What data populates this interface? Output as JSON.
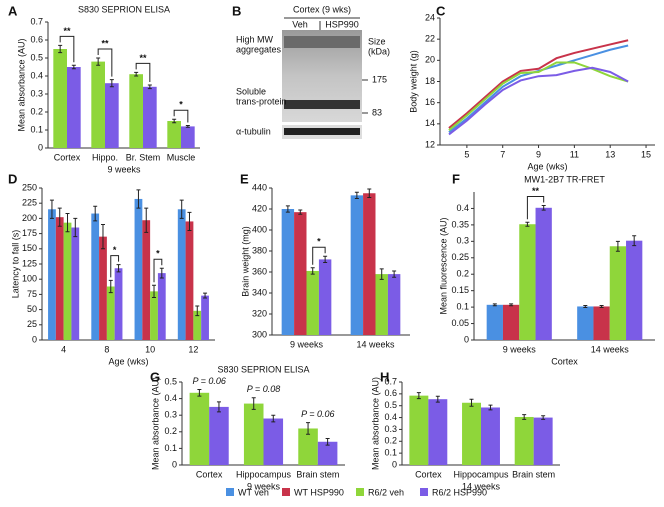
{
  "chart_data": [
    {
      "panel": "A",
      "type": "bar",
      "title": "S830 SEPRION ELISA",
      "ylabel": "Mean absorbance (AU)",
      "xlabel": "9 weeks",
      "categories": [
        "Cortex",
        "Hippo.",
        "Br. Stem",
        "Muscle"
      ],
      "series": [
        {
          "name": "R6/2 veh",
          "color": "#8fd63a",
          "values": [
            0.55,
            0.48,
            0.41,
            0.15
          ],
          "errors": [
            0.02,
            0.02,
            0.01,
            0.01
          ]
        },
        {
          "name": "R6/2 HSP990",
          "color": "#7b5ce6",
          "values": [
            0.45,
            0.36,
            0.34,
            0.12
          ],
          "errors": [
            0.01,
            0.02,
            0.01,
            0.005
          ]
        }
      ],
      "ylim": [
        0,
        0.7
      ],
      "yticks": [
        0,
        0.1,
        0.2,
        0.3,
        0.4,
        0.5,
        0.6,
        0.7
      ],
      "annotations": [
        "**",
        "**",
        "**",
        "*"
      ]
    },
    {
      "panel": "C",
      "type": "line",
      "ylabel": "Body weight (g)",
      "xlabel": "Age (wks)",
      "x": [
        4,
        5,
        6,
        7,
        8,
        9,
        10,
        11,
        12,
        13,
        14
      ],
      "series": [
        {
          "name": "WT veh",
          "color": "#4a90e2",
          "values": [
            13.2,
            14.5,
            16,
            17.5,
            18.5,
            19,
            19.5,
            20,
            20.5,
            21,
            21.4
          ]
        },
        {
          "name": "WT HSP990",
          "color": "#c8334a",
          "values": [
            13.6,
            15,
            16.5,
            18,
            19,
            19.2,
            20.2,
            20.7,
            21.1,
            21.5,
            21.9
          ]
        },
        {
          "name": "R6/2 veh",
          "color": "#8fd63a",
          "values": [
            13.4,
            14.8,
            16.3,
            17.8,
            18.8,
            18.9,
            19.8,
            19.8,
            19.2,
            18.5,
            18
          ]
        },
        {
          "name": "R6/2 HSP990",
          "color": "#7b5ce6",
          "values": [
            13,
            14.3,
            15.8,
            17.2,
            18.1,
            18.5,
            18.6,
            19,
            19.3,
            18.9,
            18
          ]
        }
      ],
      "xlim": [
        3.5,
        15.5
      ],
      "xticks": [
        5,
        7,
        9,
        11,
        13,
        15
      ],
      "ylim": [
        12,
        24
      ],
      "yticks": [
        12,
        14,
        16,
        18,
        20,
        22,
        24
      ]
    },
    {
      "panel": "D",
      "type": "bar",
      "ylabel": "Latency to fall (s)",
      "xlabel": "Age (wks)",
      "categories": [
        "4",
        "8",
        "10",
        "12"
      ],
      "series": [
        {
          "name": "WT veh",
          "color": "#4a90e2",
          "values": [
            215,
            208,
            232,
            215
          ],
          "errors": [
            15,
            12,
            15,
            15
          ]
        },
        {
          "name": "WT HSP990",
          "color": "#c8334a",
          "values": [
            202,
            170,
            197,
            195
          ],
          "errors": [
            15,
            20,
            20,
            15
          ]
        },
        {
          "name": "R6/2 veh",
          "color": "#8fd63a",
          "values": [
            193,
            88,
            80,
            48
          ],
          "errors": [
            15,
            10,
            10,
            8
          ]
        },
        {
          "name": "R6/2 HSP990",
          "color": "#7b5ce6",
          "values": [
            185,
            118,
            110,
            73
          ],
          "errors": [
            15,
            6,
            8,
            4
          ]
        }
      ],
      "ylim": [
        0,
        250
      ],
      "yticks": [
        0,
        25,
        50,
        75,
        100,
        125,
        150,
        175,
        200,
        225,
        250
      ],
      "annotations": [
        "*",
        "*"
      ]
    },
    {
      "panel": "E",
      "type": "bar",
      "ylabel": "Brain weight (mg)",
      "categories": [
        "9 weeks",
        "14 weeks"
      ],
      "series": [
        {
          "name": "WT veh",
          "color": "#4a90e2",
          "values": [
            420,
            433
          ],
          "errors": [
            3,
            3
          ]
        },
        {
          "name": "WT HSP990",
          "color": "#c8334a",
          "values": [
            417,
            435
          ],
          "errors": [
            2,
            4
          ]
        },
        {
          "name": "R6/2 veh",
          "color": "#8fd63a",
          "values": [
            361,
            358
          ],
          "errors": [
            3,
            5
          ]
        },
        {
          "name": "R6/2 HSP990",
          "color": "#7b5ce6",
          "values": [
            372,
            358
          ],
          "errors": [
            3,
            3
          ]
        }
      ],
      "ylim": [
        300,
        440
      ],
      "yticks": [
        300,
        320,
        340,
        360,
        380,
        400,
        420,
        440
      ],
      "annotations": [
        "*"
      ]
    },
    {
      "panel": "F",
      "type": "bar",
      "title": "MW1-2B7 TR-FRET",
      "ylabel": "Mean fluorescence (AU)",
      "xlabel": "Cortex",
      "categories": [
        "9 weeks",
        "14 weeks"
      ],
      "series": [
        {
          "name": "WT veh",
          "color": "#4a90e2",
          "values": [
            0.107,
            0.102
          ],
          "errors": [
            0.003,
            0.003
          ]
        },
        {
          "name": "WT HSP990",
          "color": "#c8334a",
          "values": [
            0.107,
            0.102
          ],
          "errors": [
            0.003,
            0.003
          ]
        },
        {
          "name": "R6/2 veh",
          "color": "#8fd63a",
          "values": [
            0.352,
            0.285
          ],
          "errors": [
            0.006,
            0.015
          ]
        },
        {
          "name": "R6/2 HSP990",
          "color": "#7b5ce6",
          "values": [
            0.402,
            0.302
          ],
          "errors": [
            0.007,
            0.015
          ]
        }
      ],
      "ylim": [
        0,
        0.45
      ],
      "yticks": [
        0,
        0.05,
        0.1,
        0.15,
        0.2,
        0.25,
        0.3,
        0.35,
        0.4
      ],
      "annotations": [
        "**"
      ]
    },
    {
      "panel": "G",
      "type": "bar",
      "title": "S830 SEPRION ELISA",
      "ylabel": "Mean absorbance (AU)",
      "xlabel": "9 weeks",
      "categories": [
        "Cortex",
        "Hippocampus",
        "Brain stem"
      ],
      "series": [
        {
          "name": "R6/2 veh",
          "color": "#8fd63a",
          "values": [
            0.435,
            0.37,
            0.22
          ],
          "errors": [
            0.02,
            0.035,
            0.035
          ]
        },
        {
          "name": "R6/2 HSP990",
          "color": "#7b5ce6",
          "values": [
            0.35,
            0.28,
            0.14
          ],
          "errors": [
            0.03,
            0.02,
            0.02
          ]
        }
      ],
      "ylim": [
        0,
        0.5
      ],
      "yticks": [
        0,
        0.1,
        0.2,
        0.3,
        0.4,
        0.5
      ],
      "annotations": [
        "P = 0.06",
        "P = 0.08",
        "P = 0.06"
      ]
    },
    {
      "panel": "H",
      "type": "bar",
      "ylabel": "Mean absorbance (AU)",
      "xlabel": "14 weeks",
      "categories": [
        "Cortex",
        "Hippocampus",
        "Brain stem"
      ],
      "series": [
        {
          "name": "R6/2 veh",
          "color": "#8fd63a",
          "values": [
            0.585,
            0.525,
            0.405
          ],
          "errors": [
            0.025,
            0.03,
            0.02
          ]
        },
        {
          "name": "R6/2 HSP990",
          "color": "#7b5ce6",
          "values": [
            0.555,
            0.485,
            0.4
          ],
          "errors": [
            0.025,
            0.02,
            0.015
          ]
        }
      ],
      "ylim": [
        0,
        0.7
      ],
      "yticks": [
        0,
        0.1,
        0.2,
        0.3,
        0.4,
        0.5,
        0.6,
        0.7
      ]
    }
  ],
  "blot": {
    "panel": "B",
    "title": "Cortex (9 wks)",
    "lanes": [
      "Veh",
      "HSP990"
    ],
    "left_labels": [
      [
        "High MW",
        "aggregates"
      ],
      [
        "Soluble",
        "trans-protein"
      ]
    ],
    "size_label": [
      "Size",
      "(kDa)"
    ],
    "markers": [
      "175",
      "83"
    ],
    "loading": "α-tubulin"
  },
  "legend": [
    {
      "name": "WT veh",
      "color": "#4a90e2"
    },
    {
      "name": "WT HSP990",
      "color": "#c8334a"
    },
    {
      "name": "R6/2 veh",
      "color": "#8fd63a"
    },
    {
      "name": "R6/2 HSP990",
      "color": "#7b5ce6"
    }
  ]
}
